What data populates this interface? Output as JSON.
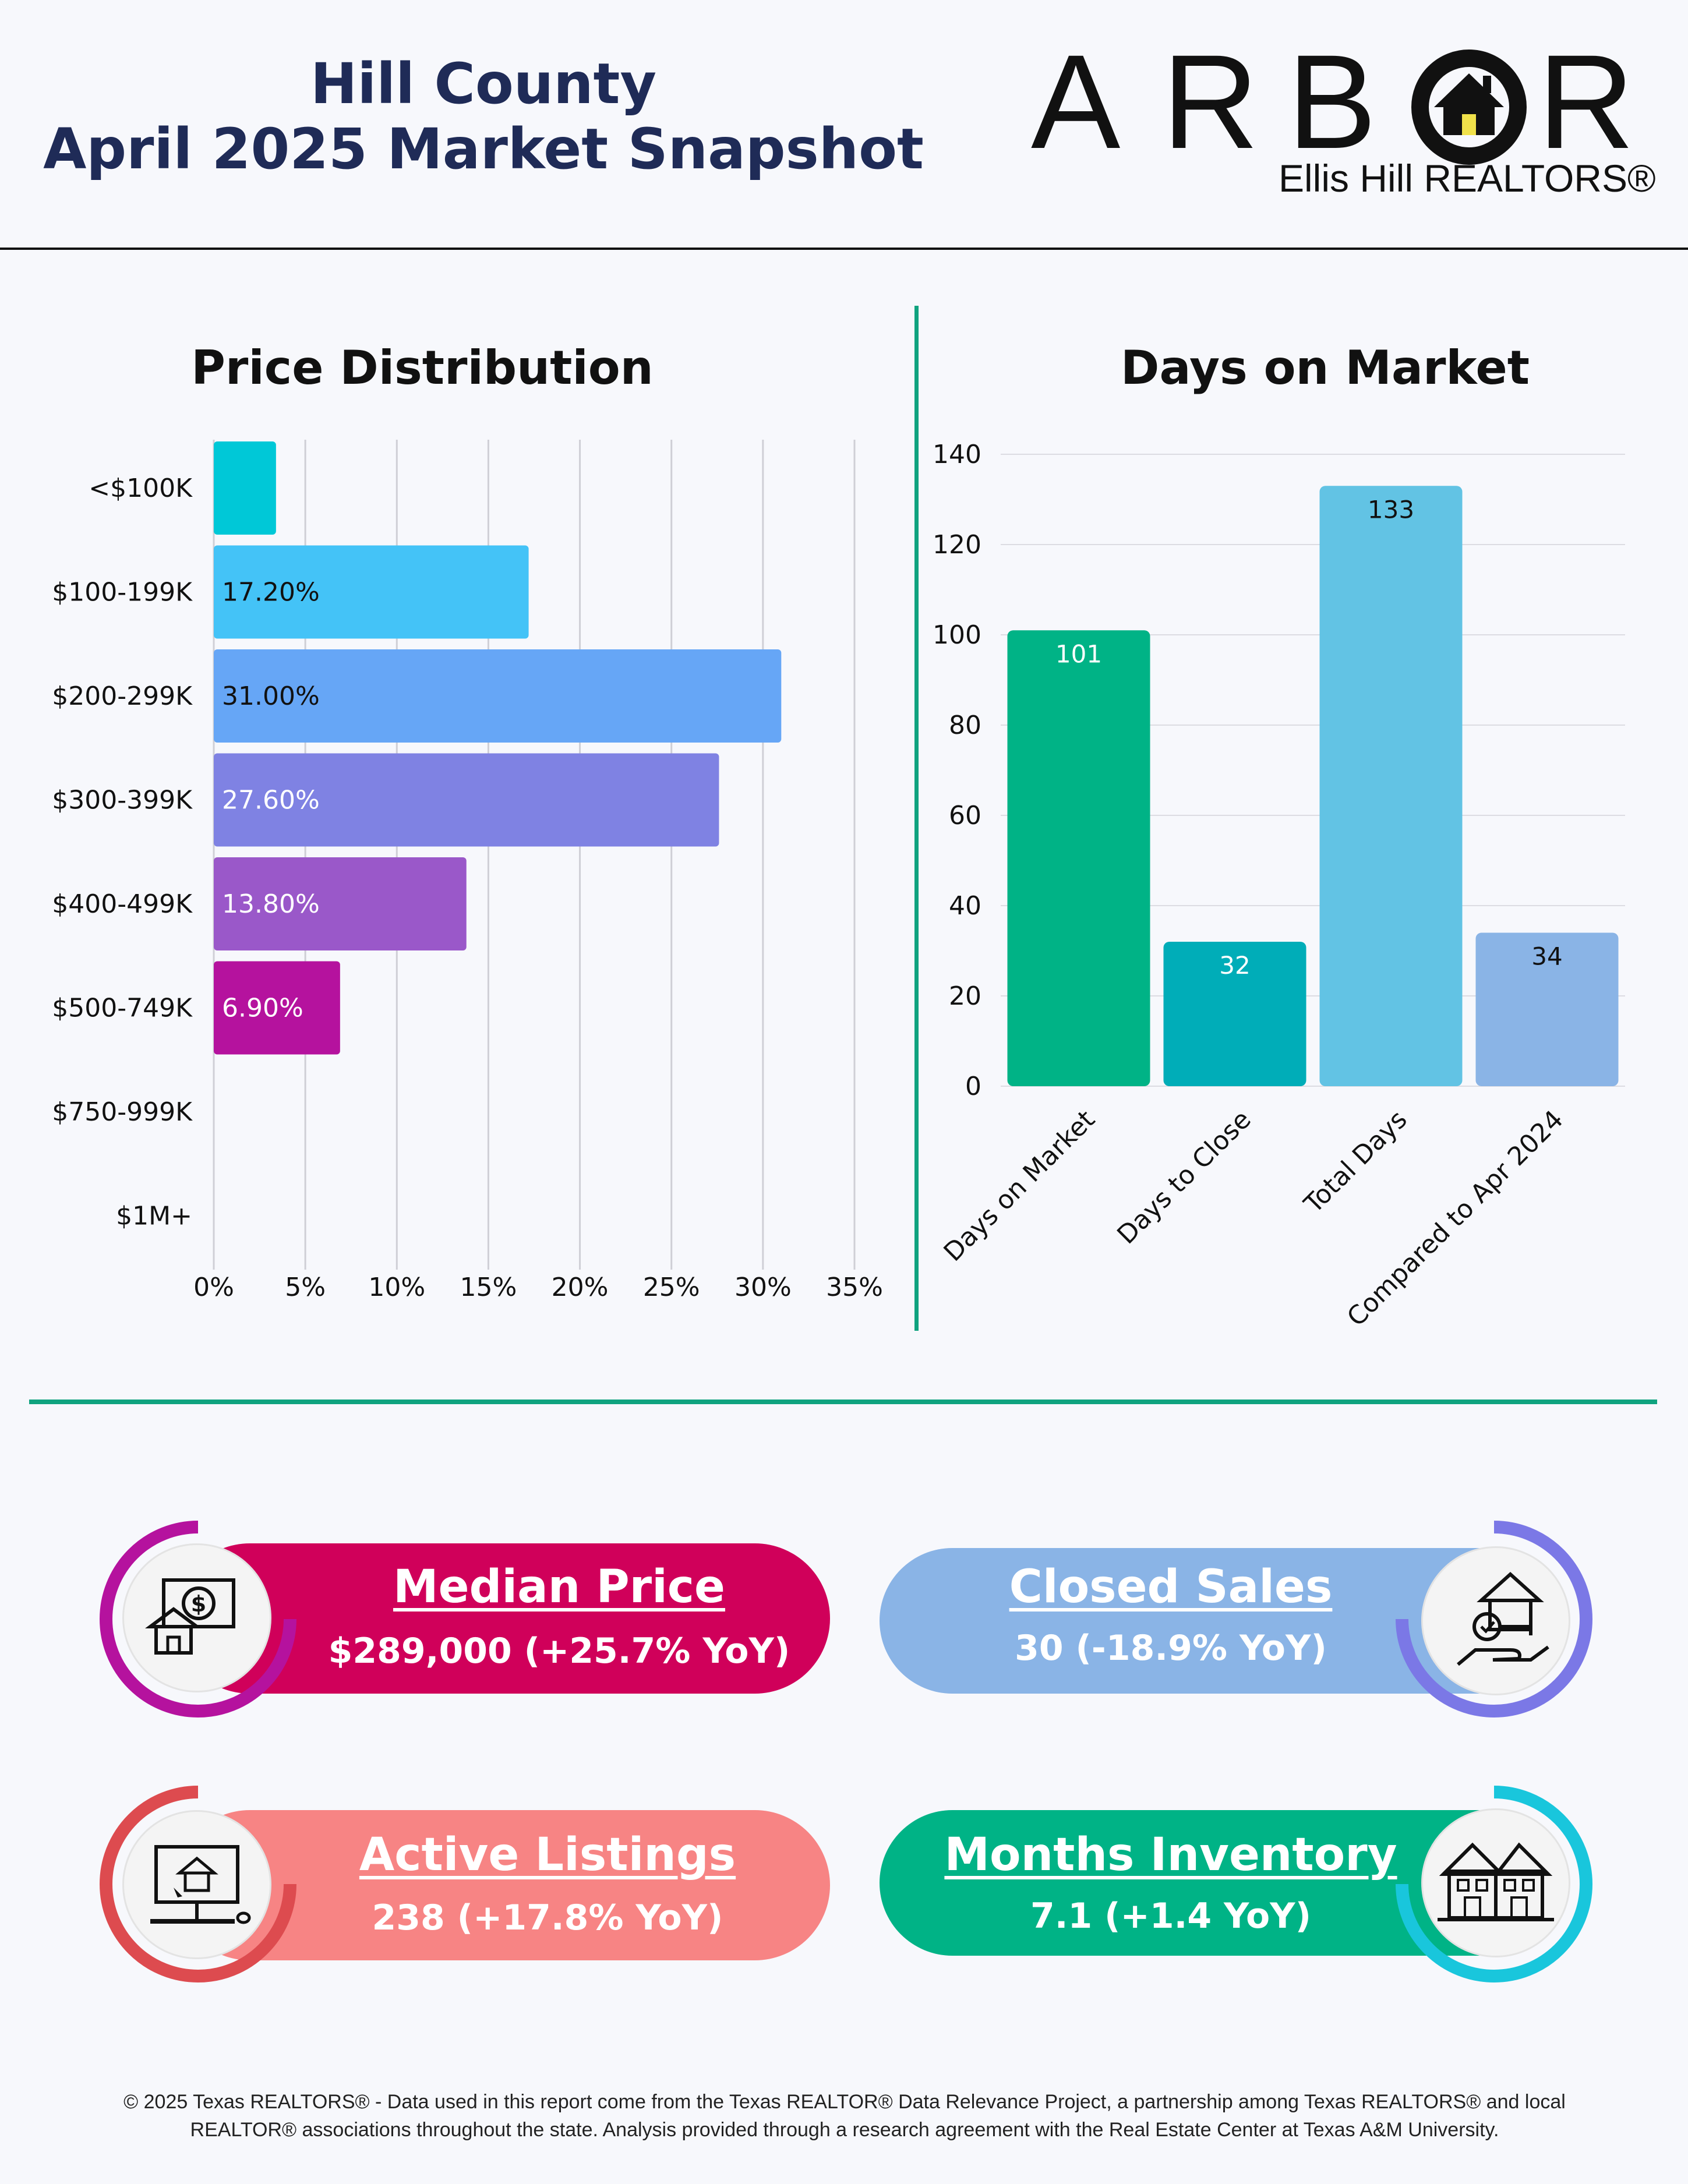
{
  "header": {
    "title_line1": "Hill County",
    "title_line2": "April 2025 Market Snapshot",
    "logo_letters": [
      "A",
      "R",
      "B",
      "O",
      "R"
    ],
    "logo_subtitle": "Ellis Hill REALTORS®"
  },
  "chart_data": [
    {
      "type": "bar",
      "orientation": "horizontal",
      "title": "Price Distribution",
      "categories": [
        "<$100K",
        "$100-199K",
        "$200-299K",
        "$300-399K",
        "$400-499K",
        "$500-749K",
        "$750-999K",
        "$1M+"
      ],
      "values": [
        3.4,
        17.2,
        31.0,
        27.6,
        13.8,
        6.9,
        0,
        0
      ],
      "data_labels": [
        "",
        "17.20%",
        "31.00%",
        "27.60%",
        "13.80%",
        "6.90%",
        "",
        ""
      ],
      "colors": [
        "#00c8d7",
        "#44c3f7",
        "#66a6f6",
        "#7f82e3",
        "#9a58c9",
        "#b5129e",
        "#b5129e",
        "#b5129e"
      ],
      "label_colors": [
        "#111111",
        "#111111",
        "#111111",
        "#ffffff",
        "#ffffff",
        "#ffffff",
        "#ffffff",
        "#ffffff"
      ],
      "xlim": [
        0,
        35
      ],
      "xticks": [
        0,
        5,
        10,
        15,
        20,
        25,
        30,
        35
      ],
      "xtick_labels": [
        "0%",
        "5%",
        "10%",
        "15%",
        "20%",
        "25%",
        "30%",
        "35%"
      ],
      "grid": "vertical"
    },
    {
      "type": "bar",
      "title": "Days on Market",
      "categories": [
        "Days on Market",
        "Days to Close",
        "Total Days",
        "Compared to Apr 2024"
      ],
      "values": [
        101,
        32,
        133,
        34
      ],
      "data_labels": [
        "101",
        "32",
        "133",
        "34"
      ],
      "colors": [
        "#00b386",
        "#00adb8",
        "#62c3e4",
        "#8ab4e6"
      ],
      "label_colors": [
        "#ffffff",
        "#ffffff",
        "#111111",
        "#111111"
      ],
      "ylim": [
        0,
        140
      ],
      "yticks": [
        0,
        20,
        40,
        60,
        80,
        100,
        120,
        140
      ],
      "grid": "horizontal"
    }
  ],
  "stats": {
    "median_price": {
      "title": "Median Price",
      "value": "$289,000 (+25.7% YoY)",
      "color": "#d0005a",
      "ring_color": "#b5129e",
      "icon": "money-house-icon"
    },
    "closed_sales": {
      "title": "Closed Sales",
      "value": "30 (-18.9% YoY)",
      "color": "#8ab4e6",
      "ring_color": "#7b78e6",
      "icon": "hand-key-house-icon"
    },
    "active_listings": {
      "title": "Active Listings",
      "value": "238 (+17.8% YoY)",
      "color": "#f78484",
      "ring_color": "#dd4b4f",
      "icon": "computer-house-icon"
    },
    "months_inventory": {
      "title": "Months Inventory",
      "value": "7.1 (+1.4 YoY)",
      "color": "#00b386",
      "ring_color": "#19c6dc",
      "icon": "townhouses-icon"
    }
  },
  "footer": {
    "line1": "© 2025 Texas REALTORS® - Data used in this report come from the Texas REALTOR® Data Relevance Project, a partnership among Texas REALTORS® and local",
    "line2": "REALTOR® associations throughout the state. Analysis provided through a research agreement with the Real Estate Center at Texas A&M University."
  }
}
